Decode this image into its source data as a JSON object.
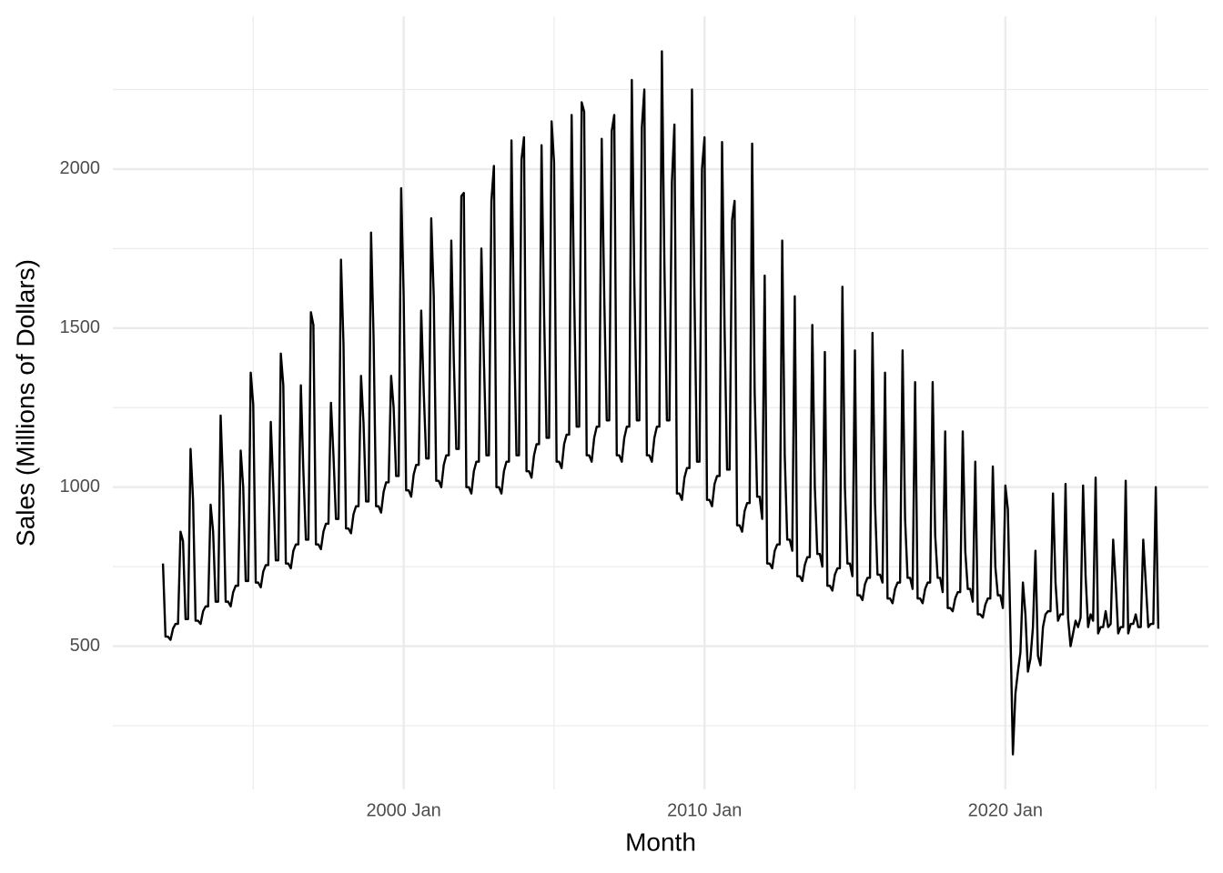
{
  "chart_data": {
    "type": "line",
    "x_label": "Month",
    "y_label": "Sales (Millions of Dollars)",
    "color": "#000000",
    "grid": true,
    "xlim": [
      "1990 May",
      "2026 Oct"
    ],
    "xticks": [
      "2000 Jan",
      "2010 Jan",
      "2020 Jan"
    ],
    "x_minor_grid": [
      "1995 Jan",
      "2005 Jan",
      "2015 Jan",
      "2025 Jan"
    ],
    "ylim": [
      50,
      2480
    ],
    "yticks": [
      500,
      1000,
      1500,
      2000
    ],
    "y_minor_grid": [
      250,
      750,
      1250,
      1750,
      2250
    ],
    "x": [
      "1992 Jan",
      "1992 Feb",
      "1992 Mar",
      "1992 Apr",
      "1992 May",
      "1992 Jun",
      "1992 Jul",
      "1992 Aug",
      "1992 Sep",
      "1992 Oct",
      "1992 Nov",
      "1992 Dec",
      "1993 Jan",
      "1993 Feb",
      "1993 Mar",
      "1993 Apr",
      "1993 May",
      "1993 Jun",
      "1993 Jul",
      "1993 Aug",
      "1993 Sep",
      "1993 Oct",
      "1993 Nov",
      "1993 Dec",
      "1994 Jan",
      "1994 Feb",
      "1994 Mar",
      "1994 Apr",
      "1994 May",
      "1994 Jun",
      "1994 Jul",
      "1994 Aug",
      "1994 Sep",
      "1994 Oct",
      "1994 Nov",
      "1994 Dec",
      "1995 Jan",
      "1995 Feb",
      "1995 Mar",
      "1995 Apr",
      "1995 May",
      "1995 Jun",
      "1995 Jul",
      "1995 Aug",
      "1995 Sep",
      "1995 Oct",
      "1995 Nov",
      "1995 Dec",
      "1996 Jan",
      "1996 Feb",
      "1996 Mar",
      "1996 Apr",
      "1996 May",
      "1996 Jun",
      "1996 Jul",
      "1996 Aug",
      "1996 Sep",
      "1996 Oct",
      "1996 Nov",
      "1996 Dec",
      "1997 Jan",
      "1997 Feb",
      "1997 Mar",
      "1997 Apr",
      "1997 May",
      "1997 Jun",
      "1997 Jul",
      "1997 Aug",
      "1997 Sep",
      "1997 Oct",
      "1997 Nov",
      "1997 Dec",
      "1998 Jan",
      "1998 Feb",
      "1998 Mar",
      "1998 Apr",
      "1998 May",
      "1998 Jun",
      "1998 Jul",
      "1998 Aug",
      "1998 Sep",
      "1998 Oct",
      "1998 Nov",
      "1998 Dec",
      "1999 Jan",
      "1999 Feb",
      "1999 Mar",
      "1999 Apr",
      "1999 May",
      "1999 Jun",
      "1999 Jul",
      "1999 Aug",
      "1999 Sep",
      "1999 Oct",
      "1999 Nov",
      "1999 Dec",
      "2000 Jan",
      "2000 Feb",
      "2000 Mar",
      "2000 Apr",
      "2000 May",
      "2000 Jun",
      "2000 Jul",
      "2000 Aug",
      "2000 Sep",
      "2000 Oct",
      "2000 Nov",
      "2000 Dec",
      "2001 Jan",
      "2001 Feb",
      "2001 Mar",
      "2001 Apr",
      "2001 May",
      "2001 Jun",
      "2001 Jul",
      "2001 Aug",
      "2001 Sep",
      "2001 Oct",
      "2001 Nov",
      "2001 Dec",
      "2002 Jan",
      "2002 Feb",
      "2002 Mar",
      "2002 Apr",
      "2002 May",
      "2002 Jun",
      "2002 Jul",
      "2002 Aug",
      "2002 Sep",
      "2002 Oct",
      "2002 Nov",
      "2002 Dec",
      "2003 Jan",
      "2003 Feb",
      "2003 Mar",
      "2003 Apr",
      "2003 May",
      "2003 Jun",
      "2003 Jul",
      "2003 Aug",
      "2003 Sep",
      "2003 Oct",
      "2003 Nov",
      "2003 Dec",
      "2004 Jan",
      "2004 Feb",
      "2004 Mar",
      "2004 Apr",
      "2004 May",
      "2004 Jun",
      "2004 Jul",
      "2004 Aug",
      "2004 Sep",
      "2004 Oct",
      "2004 Nov",
      "2004 Dec",
      "2005 Jan",
      "2005 Feb",
      "2005 Mar",
      "2005 Apr",
      "2005 May",
      "2005 Jun",
      "2005 Jul",
      "2005 Aug",
      "2005 Sep",
      "2005 Oct",
      "2005 Nov",
      "2005 Dec",
      "2006 Jan",
      "2006 Feb",
      "2006 Mar",
      "2006 Apr",
      "2006 May",
      "2006 Jun",
      "2006 Jul",
      "2006 Aug",
      "2006 Sep",
      "2006 Oct",
      "2006 Nov",
      "2006 Dec",
      "2007 Jan",
      "2007 Feb",
      "2007 Mar",
      "2007 Apr",
      "2007 May",
      "2007 Jun",
      "2007 Jul",
      "2007 Aug",
      "2007 Sep",
      "2007 Oct",
      "2007 Nov",
      "2007 Dec",
      "2008 Jan",
      "2008 Feb",
      "2008 Mar",
      "2008 Apr",
      "2008 May",
      "2008 Jun",
      "2008 Jul",
      "2008 Aug",
      "2008 Sep",
      "2008 Oct",
      "2008 Nov",
      "2008 Dec",
      "2009 Jan",
      "2009 Feb",
      "2009 Mar",
      "2009 Apr",
      "2009 May",
      "2009 Jun",
      "2009 Jul",
      "2009 Aug",
      "2009 Sep",
      "2009 Oct",
      "2009 Nov",
      "2009 Dec",
      "2010 Jan",
      "2010 Feb",
      "2010 Mar",
      "2010 Apr",
      "2010 May",
      "2010 Jun",
      "2010 Jul",
      "2010 Aug",
      "2010 Sep",
      "2010 Oct",
      "2010 Nov",
      "2010 Dec",
      "2011 Jan",
      "2011 Feb",
      "2011 Mar",
      "2011 Apr",
      "2011 May",
      "2011 Jun",
      "2011 Jul",
      "2011 Aug",
      "2011 Sep",
      "2011 Oct",
      "2011 Nov",
      "2011 Dec",
      "2012 Jan",
      "2012 Feb",
      "2012 Mar",
      "2012 Apr",
      "2012 May",
      "2012 Jun",
      "2012 Jul",
      "2012 Aug",
      "2012 Sep",
      "2012 Oct",
      "2012 Nov",
      "2012 Dec",
      "2013 Jan",
      "2013 Feb",
      "2013 Mar",
      "2013 Apr",
      "2013 May",
      "2013 Jun",
      "2013 Jul",
      "2013 Aug",
      "2013 Sep",
      "2013 Oct",
      "2013 Nov",
      "2013 Dec",
      "2014 Jan",
      "2014 Feb",
      "2014 Mar",
      "2014 Apr",
      "2014 May",
      "2014 Jun",
      "2014 Jul",
      "2014 Aug",
      "2014 Sep",
      "2014 Oct",
      "2014 Nov",
      "2014 Dec",
      "2015 Jan",
      "2015 Feb",
      "2015 Mar",
      "2015 Apr",
      "2015 May",
      "2015 Jun",
      "2015 Jul",
      "2015 Aug",
      "2015 Sep",
      "2015 Oct",
      "2015 Nov",
      "2015 Dec",
      "2016 Jan",
      "2016 Feb",
      "2016 Mar",
      "2016 Apr",
      "2016 May",
      "2016 Jun",
      "2016 Jul",
      "2016 Aug",
      "2016 Sep",
      "2016 Oct",
      "2016 Nov",
      "2016 Dec",
      "2017 Jan",
      "2017 Feb",
      "2017 Mar",
      "2017 Apr",
      "2017 May",
      "2017 Jun",
      "2017 Jul",
      "2017 Aug",
      "2017 Sep",
      "2017 Oct",
      "2017 Nov",
      "2017 Dec",
      "2018 Jan",
      "2018 Feb",
      "2018 Mar",
      "2018 Apr",
      "2018 May",
      "2018 Jun",
      "2018 Jul",
      "2018 Aug",
      "2018 Sep",
      "2018 Oct",
      "2018 Nov",
      "2018 Dec",
      "2019 Jan",
      "2019 Feb",
      "2019 Mar",
      "2019 Apr",
      "2019 May",
      "2019 Jun",
      "2019 Jul",
      "2019 Aug",
      "2019 Sep",
      "2019 Oct",
      "2019 Nov",
      "2019 Dec",
      "2020 Jan",
      "2020 Feb",
      "2020 Mar",
      "2020 Apr",
      "2020 May",
      "2020 Jun",
      "2020 Jul",
      "2020 Aug",
      "2020 Sep",
      "2020 Oct",
      "2020 Nov",
      "2020 Dec",
      "2021 Jan",
      "2021 Feb",
      "2021 Mar",
      "2021 Apr",
      "2021 May",
      "2021 Jun",
      "2021 Jul",
      "2021 Aug",
      "2021 Sep",
      "2021 Oct",
      "2021 Nov",
      "2021 Dec",
      "2022 Jan",
      "2022 Feb",
      "2022 Mar",
      "2022 Apr",
      "2022 May",
      "2022 Jun",
      "2022 Jul",
      "2022 Aug",
      "2022 Sep",
      "2022 Oct",
      "2022 Nov",
      "2022 Dec",
      "2023 Jan",
      "2023 Feb",
      "2023 Mar",
      "2023 Apr",
      "2023 May",
      "2023 Jun",
      "2023 Jul",
      "2023 Aug",
      "2023 Sep",
      "2023 Oct",
      "2023 Nov",
      "2023 Dec",
      "2024 Jan",
      "2024 Feb",
      "2024 Mar",
      "2024 Apr",
      "2024 May",
      "2024 Jun",
      "2024 Jul",
      "2024 Aug",
      "2024 Sep",
      "2024 Oct",
      "2024 Nov",
      "2024 Dec",
      "2025 Jan",
      "2025 Feb"
    ],
    "values": [
      760,
      530,
      530,
      520,
      555,
      570,
      570,
      860,
      830,
      585,
      585,
      1120,
      960,
      580,
      580,
      570,
      610,
      625,
      625,
      945,
      860,
      640,
      640,
      1225,
      1000,
      640,
      640,
      625,
      670,
      690,
      690,
      1115,
      1000,
      705,
      705,
      1360,
      1260,
      700,
      700,
      685,
      735,
      755,
      755,
      1205,
      1000,
      770,
      770,
      1420,
      1320,
      760,
      760,
      745,
      800,
      820,
      820,
      1320,
      1050,
      835,
      835,
      1550,
      1510,
      820,
      820,
      805,
      860,
      885,
      885,
      1265,
      1100,
      900,
      900,
      1715,
      1450,
      870,
      870,
      855,
      915,
      940,
      940,
      1350,
      1200,
      955,
      955,
      1800,
      1470,
      940,
      940,
      920,
      985,
      1015,
      1015,
      1350,
      1250,
      1035,
      1035,
      1940,
      1600,
      990,
      990,
      970,
      1040,
      1070,
      1070,
      1555,
      1300,
      1090,
      1090,
      1845,
      1600,
      1020,
      1020,
      1000,
      1070,
      1100,
      1100,
      1775,
      1400,
      1120,
      1120,
      1915,
      1925,
      1000,
      1000,
      980,
      1050,
      1080,
      1080,
      1750,
      1400,
      1100,
      1100,
      1900,
      2010,
      1000,
      1000,
      980,
      1050,
      1080,
      1080,
      2090,
      1500,
      1100,
      1100,
      2030,
      2100,
      1050,
      1050,
      1030,
      1100,
      1135,
      1135,
      2075,
      1550,
      1155,
      1155,
      2150,
      2020,
      1080,
      1080,
      1060,
      1135,
      1165,
      1165,
      2170,
      1600,
      1190,
      1190,
      2210,
      2180,
      1100,
      1100,
      1080,
      1155,
      1190,
      1190,
      2095,
      1600,
      1210,
      1210,
      2120,
      2170,
      1100,
      1100,
      1080,
      1155,
      1190,
      1190,
      2280,
      1650,
      1210,
      1210,
      2130,
      2250,
      1100,
      1100,
      1080,
      1155,
      1190,
      1190,
      2370,
      1700,
      1210,
      1210,
      1960,
      2140,
      980,
      980,
      960,
      1030,
      1060,
      1060,
      2250,
      1600,
      1080,
      1080,
      2000,
      2100,
      960,
      960,
      940,
      1010,
      1035,
      1035,
      2085,
      1500,
      1055,
      1055,
      1840,
      1900,
      880,
      880,
      860,
      925,
      950,
      950,
      2080,
      1300,
      970,
      970,
      900,
      1665,
      760,
      760,
      745,
      800,
      820,
      820,
      1775,
      1100,
      835,
      835,
      800,
      1600,
      720,
      720,
      705,
      755,
      780,
      780,
      1510,
      1000,
      790,
      790,
      750,
      1425,
      690,
      690,
      675,
      725,
      745,
      745,
      1630,
      1000,
      760,
      760,
      720,
      1430,
      660,
      660,
      645,
      695,
      715,
      715,
      1485,
      950,
      725,
      725,
      700,
      1360,
      650,
      650,
      635,
      680,
      700,
      700,
      1430,
      900,
      715,
      715,
      680,
      1330,
      650,
      650,
      635,
      680,
      700,
      700,
      1330,
      850,
      715,
      715,
      670,
      1175,
      620,
      620,
      610,
      650,
      670,
      670,
      1175,
      800,
      680,
      680,
      640,
      1080,
      600,
      600,
      590,
      630,
      650,
      650,
      1065,
      750,
      660,
      660,
      620,
      1005,
      930,
      560,
      160,
      350,
      420,
      480,
      700,
      600,
      420,
      460,
      560,
      800,
      470,
      440,
      560,
      600,
      610,
      610,
      980,
      700,
      580,
      600,
      600,
      1010,
      590,
      500,
      540,
      580,
      560,
      590,
      1005,
      720,
      560,
      600,
      580,
      1030,
      540,
      560,
      560,
      610,
      560,
      570,
      835,
      700,
      540,
      560,
      560,
      1020,
      540,
      570,
      570,
      600,
      560,
      560,
      835,
      700,
      560,
      570,
      570,
      1000,
      555
    ]
  }
}
